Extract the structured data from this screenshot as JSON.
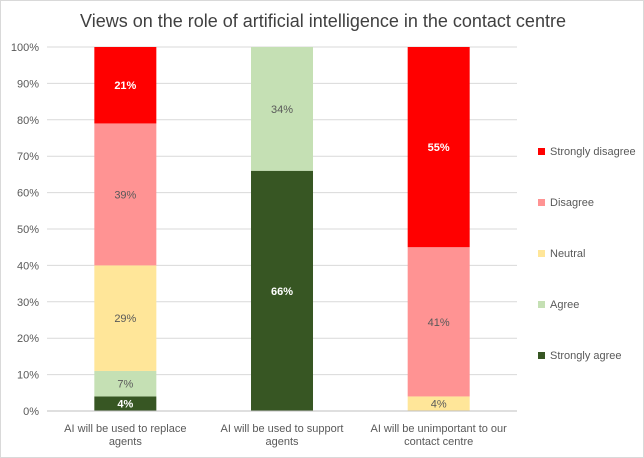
{
  "chart_data": {
    "type": "bar",
    "stacked": true,
    "title": "Views on the role of artificial intelligence in the contact centre",
    "categories": [
      [
        "AI will be used to replace",
        "agents"
      ],
      [
        "AI will be used to support",
        "agents"
      ],
      [
        "AI will be unimportant to our",
        "contact centre"
      ]
    ],
    "yticks": [
      "0%",
      "10%",
      "20%",
      "30%",
      "40%",
      "50%",
      "60%",
      "70%",
      "80%",
      "90%",
      "100%"
    ],
    "ylim": [
      0,
      100
    ],
    "grid": true,
    "legend_position": "right",
    "series": [
      {
        "name": "Strongly agree",
        "color": "#375623",
        "label_color": "#ffffff",
        "bold": true,
        "values": [
          4,
          66,
          0
        ],
        "labels": [
          "4%",
          "66%",
          ""
        ]
      },
      {
        "name": "Agree",
        "color": "#c5e0b4",
        "label_color": "#595959",
        "bold": false,
        "values": [
          7,
          34,
          0
        ],
        "labels": [
          "7%",
          "34%",
          ""
        ]
      },
      {
        "name": "Neutral",
        "color": "#ffe699",
        "label_color": "#595959",
        "bold": false,
        "values": [
          29,
          0,
          4
        ],
        "labels": [
          "29%",
          "",
          "4%"
        ]
      },
      {
        "name": "Disagree",
        "color": "#ff9393",
        "label_color": "#595959",
        "bold": false,
        "values": [
          39,
          0,
          41
        ],
        "labels": [
          "39%",
          "",
          "41%"
        ]
      },
      {
        "name": "Strongly disagree",
        "color": "#ff0000",
        "label_color": "#ffffff",
        "bold": true,
        "values": [
          21,
          0,
          55
        ],
        "labels": [
          "21%",
          "",
          "55%"
        ]
      }
    ]
  }
}
